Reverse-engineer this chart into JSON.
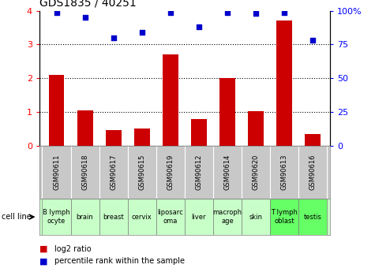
{
  "title": "GDS1835 / 40251",
  "samples": [
    "GSM90611",
    "GSM90618",
    "GSM90617",
    "GSM90615",
    "GSM90619",
    "GSM90612",
    "GSM90614",
    "GSM90620",
    "GSM90613",
    "GSM90616"
  ],
  "cell_lines": [
    "B lymph\nocyte",
    "brain",
    "breast",
    "cervix",
    "liposarc\noma",
    "liver",
    "macroph\nage",
    "skin",
    "T lymph\noblast",
    "testis"
  ],
  "log2_ratio": [
    2.1,
    1.05,
    0.45,
    0.5,
    2.7,
    0.78,
    2.0,
    1.02,
    3.72,
    0.35
  ],
  "percentile_rank": [
    99,
    95,
    80,
    84,
    99,
    88,
    99,
    98,
    99,
    78
  ],
  "bar_color": "#cc0000",
  "dot_color": "#0000cc",
  "ylim_left": [
    0,
    4
  ],
  "ylim_right": [
    0,
    100
  ],
  "yticks_left": [
    0,
    1,
    2,
    3,
    4
  ],
  "yticks_right": [
    0,
    25,
    50,
    75,
    100
  ],
  "yticklabels_right": [
    "0",
    "25",
    "50",
    "75",
    "100%"
  ],
  "cell_line_bg_gray": "#c8c8c8",
  "cell_line_bg_green_light": "#c8ffc8",
  "cell_line_bg_green": "#66ff66",
  "highlighted_cells": [
    8,
    9
  ],
  "cell_line_bg_white": "#ffffff",
  "legend_items": [
    {
      "color": "#cc0000",
      "label": "log2 ratio"
    },
    {
      "color": "#0000cc",
      "label": "percentile rank within the sample"
    }
  ],
  "fig_width": 4.75,
  "fig_height": 3.45,
  "dpi": 100
}
